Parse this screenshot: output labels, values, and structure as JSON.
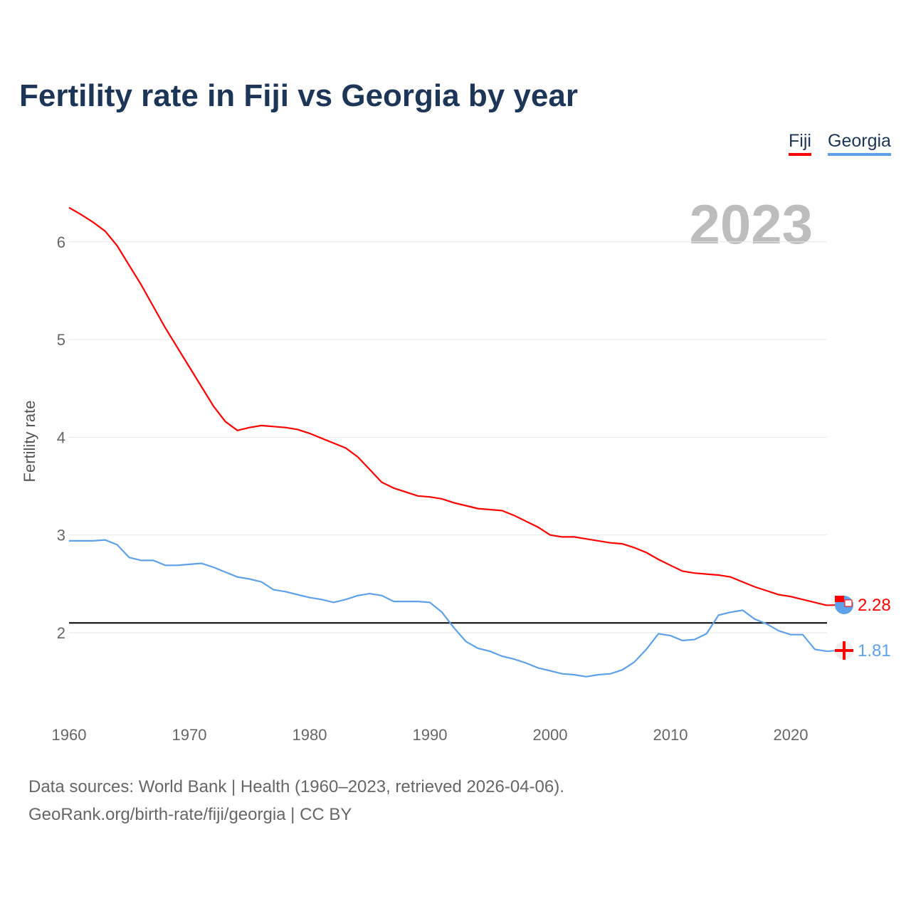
{
  "title": "Fertility rate in Fiji vs Georgia by year",
  "legend": {
    "fiji": "Fiji",
    "georgia": "Georgia"
  },
  "year_label": "2023",
  "source": {
    "line1": "Data sources: World Bank | Health (1960–2023, retrieved 2026-04-06).",
    "line2": "GeoRank.org/birth-rate/fiji/georgia | CC BY"
  },
  "chart_data": {
    "type": "line",
    "title": "Fertility rate in Fiji vs Georgia by year",
    "xlabel": "",
    "ylabel": "Fertility rate",
    "xlim": [
      1960,
      2023
    ],
    "ylim": [
      1.2,
      6.6
    ],
    "xticks": [
      1960,
      1970,
      1980,
      1990,
      2000,
      2010,
      2020
    ],
    "yticks": [
      2,
      3,
      4,
      5,
      6
    ],
    "grid": true,
    "legend_position": "top-right",
    "reference_line": 2.1,
    "x": [
      1960,
      1961,
      1962,
      1963,
      1964,
      1965,
      1966,
      1967,
      1968,
      1969,
      1970,
      1971,
      1972,
      1973,
      1974,
      1975,
      1976,
      1977,
      1978,
      1979,
      1980,
      1981,
      1982,
      1983,
      1984,
      1985,
      1986,
      1987,
      1988,
      1989,
      1990,
      1991,
      1992,
      1993,
      1994,
      1995,
      1996,
      1997,
      1998,
      1999,
      2000,
      2001,
      2002,
      2003,
      2004,
      2005,
      2006,
      2007,
      2008,
      2009,
      2010,
      2011,
      2012,
      2013,
      2014,
      2015,
      2016,
      2017,
      2018,
      2019,
      2020,
      2021,
      2022,
      2023
    ],
    "series": [
      {
        "name": "Fiji",
        "color": "#ff0000",
        "end_label": "2.28",
        "values": [
          6.35,
          6.28,
          6.2,
          6.11,
          5.96,
          5.76,
          5.56,
          5.34,
          5.12,
          4.92,
          4.72,
          4.52,
          4.32,
          4.16,
          4.07,
          4.1,
          4.12,
          4.11,
          4.1,
          4.08,
          4.04,
          3.99,
          3.94,
          3.89,
          3.8,
          3.67,
          3.54,
          3.48,
          3.44,
          3.4,
          3.39,
          3.37,
          3.33,
          3.3,
          3.27,
          3.26,
          3.25,
          3.2,
          3.14,
          3.08,
          3.0,
          2.98,
          2.98,
          2.96,
          2.94,
          2.92,
          2.91,
          2.87,
          2.82,
          2.75,
          2.69,
          2.63,
          2.61,
          2.6,
          2.59,
          2.57,
          2.52,
          2.47,
          2.43,
          2.39,
          2.37,
          2.34,
          2.31,
          2.28
        ]
      },
      {
        "name": "Georgia",
        "color": "#5fa1e8",
        "end_label": "1.81",
        "values": [
          2.94,
          2.94,
          2.94,
          2.95,
          2.9,
          2.77,
          2.74,
          2.74,
          2.69,
          2.69,
          2.7,
          2.71,
          2.67,
          2.62,
          2.57,
          2.55,
          2.52,
          2.44,
          2.42,
          2.39,
          2.36,
          2.34,
          2.31,
          2.34,
          2.38,
          2.4,
          2.38,
          2.32,
          2.32,
          2.32,
          2.31,
          2.21,
          2.05,
          1.91,
          1.84,
          1.81,
          1.76,
          1.73,
          1.69,
          1.64,
          1.61,
          1.58,
          1.57,
          1.55,
          1.57,
          1.58,
          1.62,
          1.7,
          1.83,
          1.99,
          1.97,
          1.92,
          1.93,
          1.99,
          2.18,
          2.21,
          2.23,
          2.14,
          2.09,
          2.02,
          1.98,
          1.98,
          1.83,
          1.81
        ]
      }
    ]
  }
}
